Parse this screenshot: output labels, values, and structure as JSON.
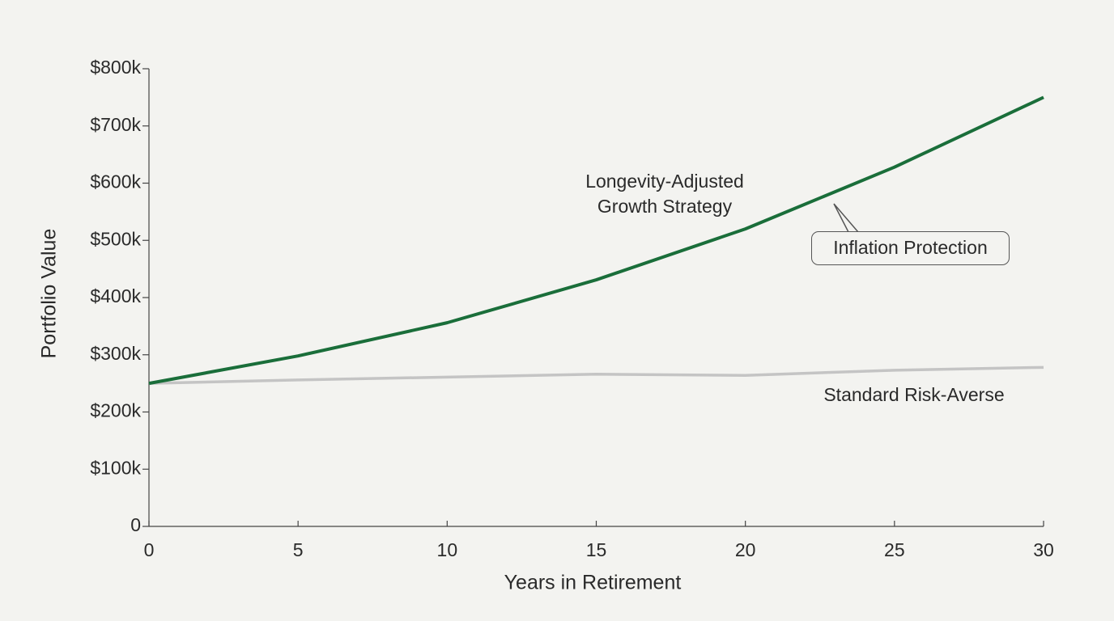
{
  "chart_data": {
    "type": "line",
    "x": [
      0,
      5,
      10,
      15,
      20,
      25,
      30
    ],
    "series": [
      {
        "name": "Longevity-Adjusted Growth Strategy",
        "color": "#1a6e3a",
        "values": [
          250000,
          298000,
          356000,
          431000,
          520000,
          628000,
          750000
        ]
      },
      {
        "name": "Standard Risk-Averse",
        "color": "#c4c4c4",
        "values": [
          250000,
          256000,
          261000,
          266000,
          264000,
          273000,
          278000
        ]
      }
    ],
    "xlabel": "Years in Retirement",
    "ylabel": "Portfolio Value",
    "xlim": [
      0,
      30
    ],
    "xticks": [
      0,
      5,
      10,
      15,
      20,
      25,
      30
    ],
    "ylim": [
      0,
      800000
    ],
    "yticks": [
      0,
      {
        "value": 100000,
        "label": "$100k"
      },
      {
        "value": 200000,
        "label": "$200k"
      },
      {
        "value": 300000,
        "label": "$300k"
      },
      {
        "value": 400000,
        "label": "$400k"
      },
      {
        "value": 500000,
        "label": "$500k"
      },
      {
        "value": 600000,
        "label": "$600k"
      },
      {
        "value": 700000,
        "label": "$700k"
      },
      {
        "value": 800000,
        "label": "$800k"
      }
    ],
    "annotations": [
      {
        "text": "Inflation Protection"
      }
    ]
  }
}
